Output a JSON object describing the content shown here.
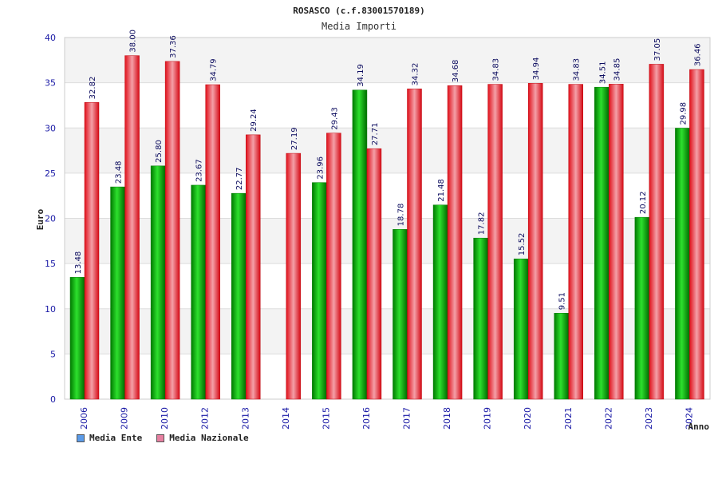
{
  "chart_data": {
    "type": "bar",
    "title": "ROSASCO (c.f.83001570189)",
    "subtitle": "Media Importi",
    "xlabel": "Anno",
    "ylabel": "Euro",
    "ylim": [
      0,
      40
    ],
    "yticks": [
      0,
      5,
      10,
      15,
      20,
      25,
      30,
      35,
      40
    ],
    "grid": true,
    "legend_position": "bottom-left",
    "categories": [
      "2006",
      "2009",
      "2010",
      "2012",
      "2013",
      "2014",
      "2015",
      "2016",
      "2017",
      "2018",
      "2019",
      "2020",
      "2021",
      "2022",
      "2023",
      "2024"
    ],
    "series": [
      {
        "name": "Media Ente",
        "values": [
          13.48,
          23.48,
          25.8,
          23.67,
          22.77,
          null,
          23.96,
          34.19,
          18.78,
          21.48,
          17.82,
          15.52,
          9.51,
          34.51,
          20.12,
          29.98
        ],
        "labels": [
          "13.48",
          "23.48",
          "25.80",
          "23.67",
          "22.77",
          "",
          "23.96",
          "34.19",
          "18.78",
          "21.48",
          "17.82",
          "15.52",
          "9.51",
          "34.51",
          "20.12",
          "29.98"
        ],
        "bar_color": "#00aa00",
        "legend_color": "#5b9be8"
      },
      {
        "name": "Media Nazionale",
        "values": [
          32.82,
          38.0,
          37.36,
          34.79,
          29.24,
          27.19,
          29.43,
          27.71,
          34.32,
          34.68,
          34.83,
          34.94,
          34.83,
          34.85,
          37.05,
          36.46
        ],
        "labels": [
          "32.82",
          "38.00",
          "37.36",
          "34.79",
          "29.24",
          "27.19",
          "29.43",
          "27.71",
          "34.32",
          "34.68",
          "34.83",
          "34.94",
          "34.83",
          "34.85",
          "37.05",
          "36.46"
        ],
        "bar_color": "#e8101a",
        "legend_color": "#e67fa0"
      }
    ]
  }
}
